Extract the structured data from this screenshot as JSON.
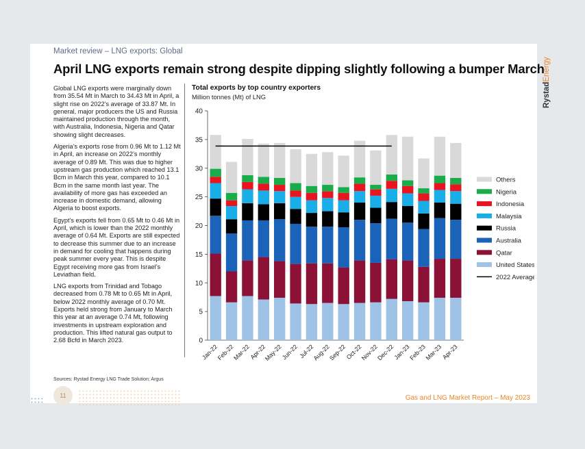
{
  "slide": {
    "section": "Market review – LNG exports: Global",
    "title": "April LNG exports remain strong despite dipping slightly following a bumper March",
    "logo_part1": "Rystad",
    "logo_part2": "Energy",
    "paragraphs": [
      "Global LNG exports were marginally down from 35.54 Mt in March to 34.43 Mt in April, a slight rise on 2022’s average of 33.87 Mt. In general, major producers the US and Russia maintained production through the month, with Australia, Indonesia, Nigeria and Qatar showing slight decreases.",
      "Algeria’s exports rose from 0.96 Mt to 1.12 Mt in April, an increase on 2022’s monthly average of 0.89 Mt. This was due to higher upstream gas production which reached 13.1 Bcm in March this year, compared to 10.1 Bcm in the same month last year. The availability of more gas has exceeded an increase in domestic demand, allowing Algeria to boost exports.",
      "Egypt’s exports fell from 0.65 Mt to 0.46 Mt in April, which is lower than the 2022 monthly average of 0.64 Mt. Exports are still expected to decrease this summer due to an increase in demand for cooling that happens during peak summer every year. This is despite Egypt receiving more gas from Israel’s Leviathan field.",
      "LNG exports from Trinidad and Tobago decreased from 0.78 Mt to 0.65 Mt in April, below 2022 monthly average of 0.70 Mt. Exports held strong from January to March this year at an average 0.74 Mt, following investments in upstream exploration and production. This lifted natural gas output to 2.68 Bcfd in March 2023."
    ],
    "sources": "Sources: Rystad Energy LNG Trade Solution; Argus",
    "page_number": "11",
    "footer": "Gas and LNG Market Report – May 2023"
  },
  "colors": {
    "Others": "#d9d9d9",
    "Nigeria": "#1aab4b",
    "Indonesia": "#e8141f",
    "Malaysia": "#1aaee8",
    "Russia": "#000000",
    "Australia": "#1a63b8",
    "Qatar": "#8b1236",
    "United States": "#9ec3e6",
    "average_line": "#000000",
    "brand_orange": "#e8862a"
  },
  "chart_data": {
    "type": "bar",
    "stacked": true,
    "title": "Total exports by top country exporters",
    "ylabel": "Million tonnes (Mt) of LNG",
    "ylim": [
      0,
      40
    ],
    "yticks": [
      0,
      5,
      10,
      15,
      20,
      25,
      30,
      35,
      40
    ],
    "grid": false,
    "legend_position": "right",
    "categories": [
      "Jan-22",
      "Feb-22",
      "Mar-22",
      "Apr-22",
      "May-22",
      "Jun-22",
      "Jul-22",
      "Aug-22",
      "Sep-22",
      "Oct-22",
      "Nov-22",
      "Dec-22",
      "Jan-23",
      "Feb-23",
      "Mar-23",
      "Apr-23"
    ],
    "series": [
      {
        "name": "United States",
        "values": [
          7.7,
          6.6,
          7.7,
          7.1,
          7.4,
          6.4,
          6.3,
          6.5,
          6.3,
          6.5,
          6.6,
          7.2,
          6.8,
          6.6,
          7.4,
          7.4
        ]
      },
      {
        "name": "Qatar",
        "values": [
          7.4,
          5.4,
          6.2,
          7.4,
          6.4,
          6.9,
          7.1,
          6.9,
          6.4,
          7.4,
          6.9,
          6.9,
          7.1,
          6.2,
          6.8,
          6.8
        ]
      },
      {
        "name": "Australia",
        "values": [
          6.6,
          6.6,
          7.0,
          6.4,
          7.3,
          7.0,
          6.4,
          6.4,
          7.0,
          7.1,
          6.9,
          7.1,
          6.6,
          6.6,
          7.1,
          6.8
        ]
      },
      {
        "name": "Russia",
        "values": [
          3.0,
          2.5,
          3.0,
          2.8,
          2.8,
          2.6,
          2.4,
          2.7,
          2.6,
          3.0,
          2.7,
          2.9,
          2.9,
          2.7,
          2.7,
          2.8
        ]
      },
      {
        "name": "Malaysia",
        "values": [
          2.7,
          2.3,
          2.4,
          2.4,
          2.1,
          2.1,
          2.2,
          2.3,
          2.1,
          2.0,
          2.1,
          2.3,
          2.2,
          2.2,
          2.2,
          2.2
        ]
      },
      {
        "name": "Indonesia",
        "values": [
          1.1,
          1.0,
          1.3,
          1.2,
          1.1,
          1.1,
          1.3,
          1.2,
          1.3,
          1.3,
          1.1,
          1.4,
          1.3,
          1.3,
          1.2,
          1.2
        ]
      },
      {
        "name": "Nigeria",
        "values": [
          1.4,
          1.3,
          1.2,
          1.2,
          1.2,
          1.3,
          1.2,
          1.1,
          1.0,
          1.1,
          0.8,
          1.1,
          1.0,
          0.9,
          1.3,
          1.1
        ]
      },
      {
        "name": "Others",
        "values": [
          5.9,
          5.4,
          6.3,
          5.8,
          6.1,
          5.9,
          5.6,
          5.7,
          5.5,
          6.4,
          6.0,
          6.9,
          7.6,
          5.2,
          6.8,
          6.1
        ]
      }
    ],
    "reference_line": {
      "name": "2022 Average",
      "value": 33.87,
      "from": "Jan-22",
      "to": "Dec-22"
    },
    "legend_order": [
      "Others",
      "Nigeria",
      "Indonesia",
      "Malaysia",
      "Russia",
      "Australia",
      "Qatar",
      "United States",
      "2022 Average"
    ]
  }
}
